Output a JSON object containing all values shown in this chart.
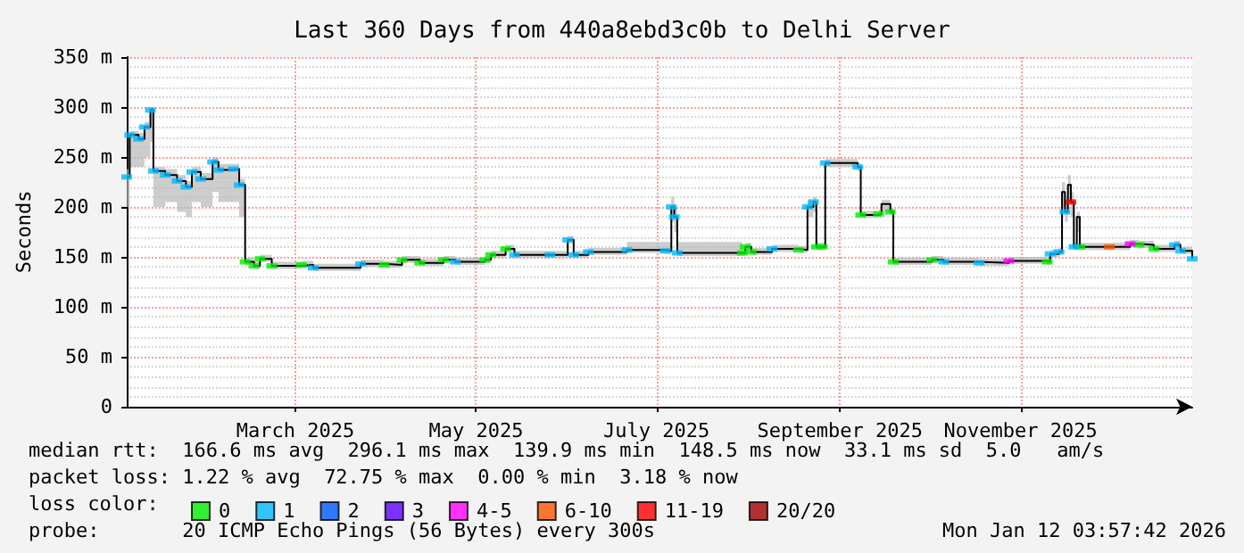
{
  "chart_data": {
    "type": "step",
    "title": "Last 360 Days from 440a8ebd3c0b to Delhi Server",
    "ylabel": "Seconds",
    "legend_title": "loss color:",
    "annotations": [
      "median rtt:  166.6 ms avg  296.1 ms max  139.9 ms min  148.5 ms now  33.1 ms sd  5.0   am/s",
      "packet loss: 1.22 % avg  72.75 % max  0.00 % min  3.18 % now",
      "probe:       20 ICMP Echo Pings (56 Bytes) every 300s",
      "Mon Jan 12 03:57:42 2026"
    ],
    "xlim": [
      "2025-01-17",
      "2026-01-12"
    ],
    "xticks": [
      {
        "value": "2025-03-15",
        "label": "March 2025"
      },
      {
        "value": "2025-05-15",
        "label": "May 2025"
      },
      {
        "value": "2025-07-15",
        "label": "July 2025"
      },
      {
        "value": "2025-09-15",
        "label": "September 2025"
      },
      {
        "value": "2025-11-15",
        "label": "November 2025"
      }
    ],
    "ylim": [
      0,
      350
    ],
    "yticks": [
      0,
      {
        "value": 50,
        "label": "50 m"
      },
      {
        "value": 100,
        "label": "100 m"
      },
      {
        "value": 150,
        "label": "150 m"
      },
      {
        "value": 200,
        "label": "200 m"
      },
      {
        "value": 250,
        "label": "250 m"
      },
      {
        "value": 300,
        "label": "300 m"
      },
      {
        "value": 350,
        "label": "350 m"
      }
    ],
    "grid": true,
    "legend": "bottom",
    "line_style": "solid",
    "x": [
      "2025-01-17",
      "2025-01-18",
      "2025-01-21",
      "2025-01-23",
      "2025-01-25",
      "2025-01-26",
      "2025-01-30",
      "2025-02-03",
      "2025-02-06",
      "2025-02-08",
      "2025-02-11",
      "2025-02-15",
      "2025-02-17",
      "2025-02-22",
      "2025-02-24",
      "2025-02-26",
      "2025-03-01",
      "2025-03-03",
      "2025-03-07",
      "2025-03-17",
      "2025-03-21",
      "2025-04-06",
      "2025-04-14",
      "2025-04-20",
      "2025-04-26",
      "2025-05-04",
      "2025-05-08",
      "2025-05-18",
      "2025-05-20",
      "2025-05-25",
      "2025-05-28",
      "2025-06-09",
      "2025-06-15",
      "2025-06-17",
      "2025-06-22",
      "2025-07-05",
      "2025-07-18",
      "2025-07-20",
      "2025-07-21",
      "2025-07-22",
      "2025-08-13",
      "2025-08-14",
      "2025-08-16",
      "2025-08-23",
      "2025-09-01",
      "2025-09-04",
      "2025-09-06",
      "2025-09-07",
      "2025-09-09",
      "2025-09-10",
      "2025-09-21",
      "2025-09-22",
      "2025-09-28",
      "2025-09-29",
      "2025-10-02",
      "2025-10-03",
      "2025-10-16",
      "2025-10-20",
      "2025-11-01",
      "2025-11-11",
      "2025-11-24",
      "2025-11-25",
      "2025-11-28",
      "2025-11-29",
      "2025-11-30",
      "2025-12-01",
      "2025-12-02",
      "2025-12-03",
      "2025-12-04",
      "2025-12-05",
      "2025-12-15",
      "2025-12-22",
      "2025-12-25",
      "2025-12-30",
      "2026-01-06",
      "2026-01-08",
      "2026-01-12"
    ],
    "series": [
      {
        "color": "#000000",
        "values": [
          230,
          272,
          268,
          280,
          297,
          236,
          232,
          226,
          220,
          235,
          228,
          245,
          237,
          238,
          222,
          145,
          141,
          148,
          141,
          142,
          139,
          143,
          142,
          147,
          144,
          147,
          145,
          147,
          152,
          158,
          152,
          152,
          167,
          152,
          155,
          157,
          156,
          200,
          190,
          154,
          154,
          160,
          155,
          158,
          157,
          200,
          205,
          160,
          160,
          244,
          240,
          192,
          193,
          203,
          195,
          145,
          147,
          145,
          144,
          146,
          145,
          153,
          155,
          215,
          195,
          222,
          205,
          160,
          190,
          160,
          160,
          163,
          162,
          158,
          162,
          156,
          148
        ],
        "lower": [
          200,
          240,
          240,
          250,
          265,
          200,
          205,
          195,
          190,
          205,
          200,
          215,
          205,
          205,
          190,
          142,
          138,
          145,
          138,
          139,
          136,
          140,
          139,
          144,
          141,
          144,
          142,
          144,
          149,
          155,
          149,
          149,
          164,
          149,
          152,
          154,
          153,
          185,
          175,
          151,
          151,
          157,
          152,
          155,
          154,
          190,
          195,
          157,
          157,
          240,
          236,
          189,
          190,
          195,
          192,
          142,
          144,
          142,
          141,
          143,
          142,
          150,
          152,
          200,
          185,
          205,
          190,
          157,
          175,
          157,
          157,
          160,
          159,
          155,
          159,
          153,
          145
        ],
        "upper": [
          238,
          276,
          274,
          285,
          300,
          240,
          238,
          232,
          226,
          240,
          234,
          250,
          243,
          243,
          228,
          149,
          145,
          152,
          145,
          146,
          143,
          147,
          146,
          151,
          148,
          151,
          149,
          151,
          156,
          162,
          156,
          156,
          171,
          156,
          159,
          165,
          165,
          210,
          200,
          165,
          160,
          164,
          159,
          162,
          161,
          206,
          210,
          164,
          164,
          248,
          244,
          196,
          197,
          207,
          199,
          149,
          151,
          149,
          148,
          150,
          149,
          157,
          159,
          225,
          205,
          232,
          215,
          164,
          195,
          164,
          164,
          167,
          166,
          162,
          166,
          160,
          152
        ]
      },
      {
        "name": "0",
        "type": "scatter",
        "marker": "square",
        "color": "#00ee00",
        "x": [
          "2025-02-26",
          "2025-03-01",
          "2025-03-03",
          "2025-03-07",
          "2025-03-17",
          "2025-04-14",
          "2025-04-20",
          "2025-04-26",
          "2025-05-04",
          "2025-05-18",
          "2025-05-20",
          "2025-05-25",
          "2025-08-13",
          "2025-08-14",
          "2025-08-16",
          "2025-09-01",
          "2025-09-07",
          "2025-09-09",
          "2025-09-22",
          "2025-09-28",
          "2025-10-02",
          "2025-10-03",
          "2025-10-16",
          "2025-11-24",
          "2025-12-05",
          "2025-12-25",
          "2025-12-30"
        ],
        "values": [
          145,
          141,
          148,
          141,
          142,
          142,
          147,
          144,
          147,
          147,
          152,
          158,
          154,
          160,
          155,
          157,
          160,
          160,
          192,
          193,
          195,
          145,
          147,
          145,
          160,
          162,
          158
        ]
      },
      {
        "name": "1",
        "type": "scatter",
        "marker": "square",
        "color": "#00b8ff",
        "x": [
          "2025-01-17",
          "2025-01-18",
          "2025-01-21",
          "2025-01-23",
          "2025-01-25",
          "2025-01-26",
          "2025-01-30",
          "2025-02-03",
          "2025-02-06",
          "2025-02-08",
          "2025-02-11",
          "2025-02-15",
          "2025-02-17",
          "2025-02-22",
          "2025-02-24",
          "2025-03-21",
          "2025-04-06",
          "2025-05-08",
          "2025-05-28",
          "2025-06-09",
          "2025-06-15",
          "2025-06-17",
          "2025-06-22",
          "2025-07-05",
          "2025-07-18",
          "2025-07-20",
          "2025-07-21",
          "2025-07-22",
          "2025-08-23",
          "2025-09-04",
          "2025-09-06",
          "2025-09-10",
          "2025-09-21",
          "2025-10-20",
          "2025-11-01",
          "2025-11-25",
          "2025-11-28",
          "2025-11-30",
          "2025-12-03",
          "2026-01-06",
          "2026-01-08",
          "2026-01-12"
        ],
        "values": [
          230,
          272,
          268,
          280,
          297,
          236,
          232,
          226,
          220,
          235,
          228,
          245,
          237,
          238,
          222,
          139,
          143,
          145,
          152,
          152,
          167,
          152,
          155,
          157,
          156,
          200,
          190,
          154,
          158,
          200,
          205,
          244,
          240,
          145,
          144,
          153,
          155,
          195,
          160,
          162,
          156,
          148
        ]
      },
      {
        "name": "2",
        "type": "scatter",
        "marker": "square",
        "color": "#0059ff",
        "values": [
          null,
          null,
          null,
          null,
          null,
          null,
          null,
          null,
          null,
          null,
          null,
          null,
          null,
          null,
          null,
          null,
          null,
          null,
          null,
          null,
          null,
          null,
          null,
          null,
          null,
          null,
          null,
          null,
          null,
          null,
          null,
          null,
          null,
          null,
          null,
          null,
          null,
          null,
          null,
          null,
          null,
          null,
          null,
          null,
          null,
          null,
          null,
          null,
          null,
          null,
          null,
          null,
          null,
          null,
          null,
          null,
          null,
          null,
          null,
          null,
          null,
          null,
          null,
          null,
          null,
          null,
          null,
          null,
          null,
          null,
          null,
          null,
          null,
          null,
          null,
          null,
          null
        ]
      },
      {
        "name": "3",
        "type": "scatter",
        "marker": "square",
        "color": "#5e00ff",
        "values": [
          null,
          null,
          null,
          null,
          null,
          null,
          null,
          null,
          null,
          null,
          null,
          null,
          null,
          null,
          null,
          null,
          null,
          null,
          null,
          null,
          null,
          null,
          null,
          null,
          null,
          null,
          null,
          null,
          null,
          null,
          null,
          null,
          null,
          null,
          null,
          null,
          null,
          null,
          null,
          null,
          null,
          null,
          null,
          null,
          null,
          null,
          null,
          null,
          null,
          null,
          null,
          null,
          null,
          null,
          null,
          null,
          null,
          null,
          null,
          null,
          null,
          null,
          null,
          null,
          null,
          null,
          null,
          null,
          null,
          null,
          null,
          null,
          null,
          null,
          null,
          null,
          null
        ]
      },
      {
        "name": "4-5",
        "type": "scatter",
        "marker": "square",
        "color": "#ff00ff",
        "x": [
          "2025-11-11",
          "2025-12-22"
        ],
        "values": [
          146,
          163
        ]
      },
      {
        "name": "6-10",
        "type": "scatter",
        "marker": "square",
        "color": "#ff5500",
        "x": [
          "2025-12-15"
        ],
        "values": [
          160
        ]
      },
      {
        "name": "11-19",
        "type": "scatter",
        "marker": "square",
        "color": "#ff0000",
        "x": [
          "2025-12-02"
        ],
        "values": [
          205
        ]
      },
      {
        "name": "20/20",
        "type": "scatter",
        "marker": "square",
        "color": "#a10000",
        "values": [
          null,
          null,
          null,
          null,
          null,
          null,
          null,
          null,
          null,
          null,
          null,
          null,
          null,
          null,
          null,
          null,
          null,
          null,
          null,
          null,
          null,
          null,
          null,
          null,
          null,
          null,
          null,
          null,
          null,
          null,
          null,
          null,
          null,
          null,
          null,
          null,
          null,
          null,
          null,
          null,
          null,
          null,
          null,
          null,
          null,
          null,
          null,
          null,
          null,
          null,
          null,
          null,
          null,
          null,
          null,
          null,
          null,
          null,
          null,
          null,
          null,
          null,
          null,
          null,
          null,
          null,
          null,
          null,
          null,
          null,
          null,
          null,
          null,
          null,
          null,
          null,
          null
        ]
      }
    ]
  }
}
